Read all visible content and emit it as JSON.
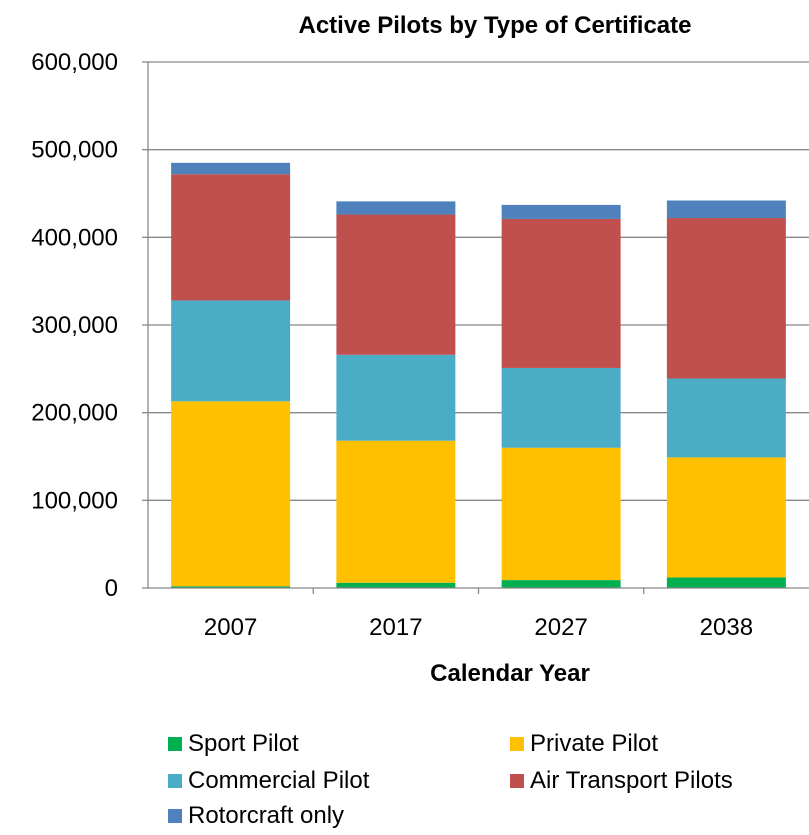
{
  "chart_data": {
    "type": "bar",
    "stacked": true,
    "title": "Active Pilots by Type of Certificate",
    "xlabel": "Calendar Year",
    "ylabel": "",
    "categories": [
      "2007",
      "2017",
      "2027",
      "2038"
    ],
    "ylim": [
      0,
      600000
    ],
    "yticks": [
      0,
      100000,
      200000,
      300000,
      400000,
      500000,
      600000
    ],
    "ytick_labels": [
      "0",
      "100,000",
      "200,000",
      "300,000",
      "400,000",
      "500,000",
      "600,000"
    ],
    "grid": true,
    "legend_position": "bottom",
    "series": [
      {
        "name": "Sport Pilot",
        "color": "#00b050",
        "values": [
          2000,
          6000,
          9000,
          12000
        ]
      },
      {
        "name": "Private Pilot",
        "color": "#ffc000",
        "values": [
          211000,
          162000,
          151000,
          137000
        ]
      },
      {
        "name": "Commercial Pilot",
        "color": "#4bacc6",
        "values": [
          115000,
          98000,
          91000,
          90000
        ]
      },
      {
        "name": "Air Transport Pilots",
        "color": "#c0504d",
        "values": [
          144000,
          160000,
          170000,
          183000
        ]
      },
      {
        "name": "Rotorcraft only",
        "color": "#4f81bd",
        "values": [
          13000,
          15000,
          16000,
          20000
        ]
      }
    ]
  }
}
